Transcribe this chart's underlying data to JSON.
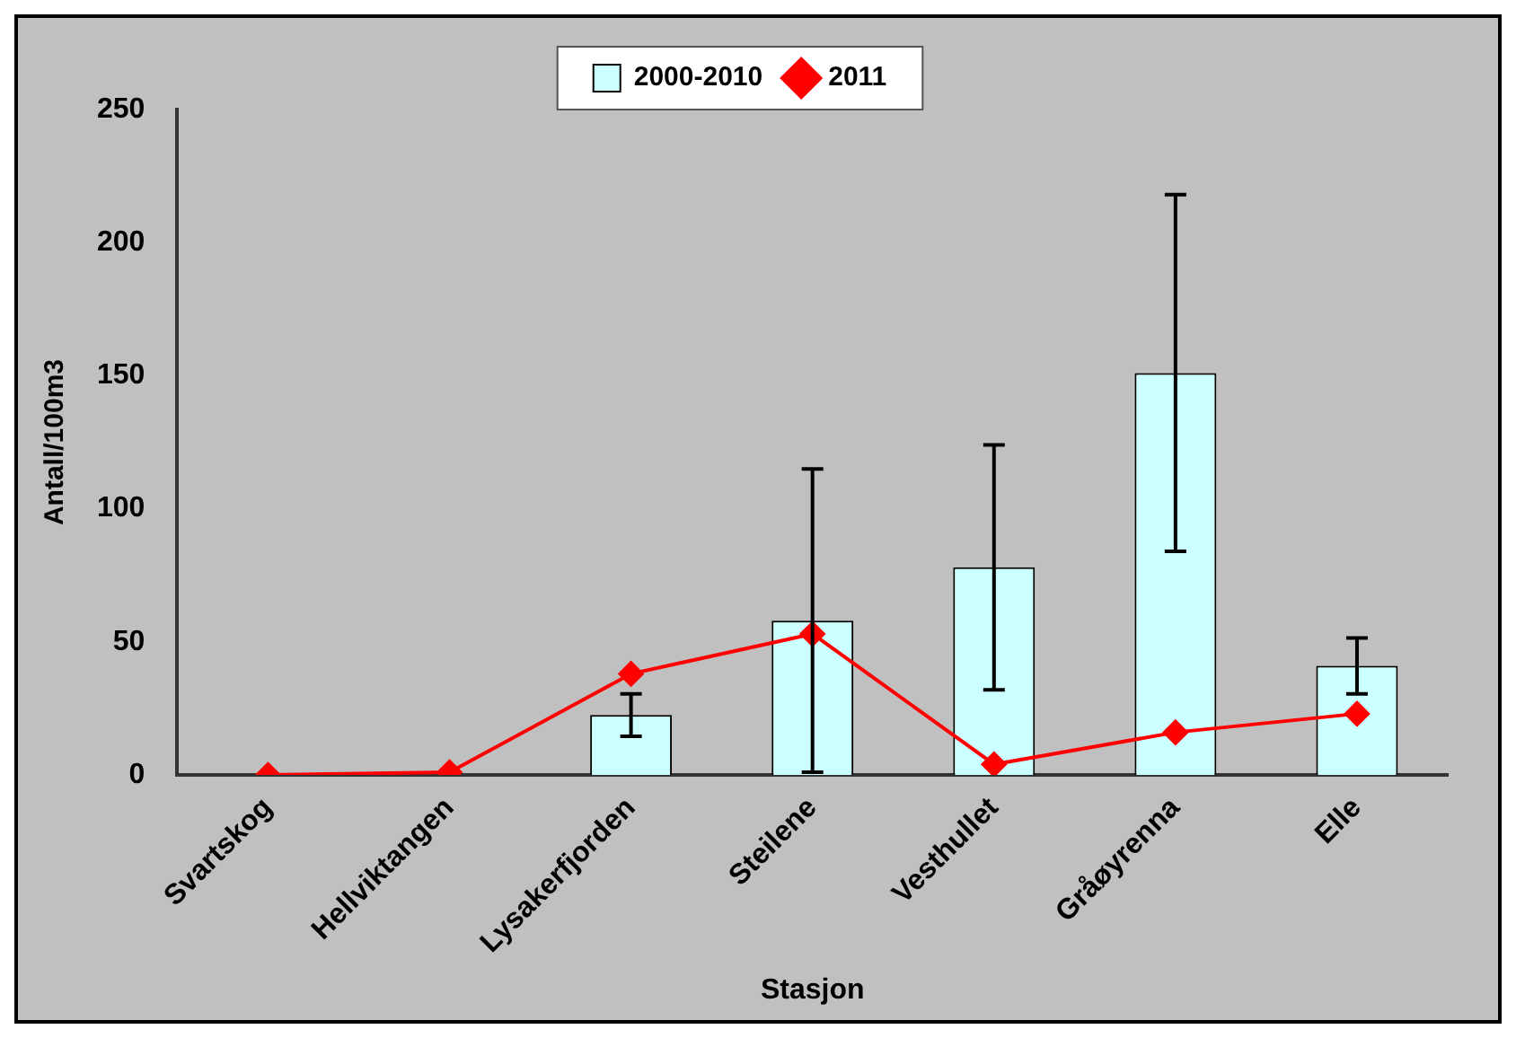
{
  "chart_data": {
    "type": "bar",
    "xlabel": "Stasjon",
    "ylabel": "Antall/100m3",
    "categories": [
      "Svartskog",
      "Hellviktangen",
      "Lysakerfjorden",
      "Steilene",
      "Vesthullet",
      "Gråøyrenna",
      "Elle"
    ],
    "series": [
      {
        "name": "2000-2010",
        "color": "#ccffff",
        "values": [
          0,
          null,
          22.5,
          58,
          78,
          151,
          41
        ],
        "errors": [
          null,
          null,
          8,
          57,
          46,
          67,
          10.5
        ]
      },
      {
        "name": "2011",
        "type": "line",
        "color": "#ff0000",
        "values": [
          0,
          1,
          38,
          53,
          4,
          16,
          23
        ],
        "marker": "diamond",
        "line_style": "solid"
      }
    ],
    "ylim": [
      0,
      250
    ],
    "yticks": [
      0,
      50,
      100,
      150,
      200,
      250
    ],
    "grid": false,
    "legend": "top"
  }
}
